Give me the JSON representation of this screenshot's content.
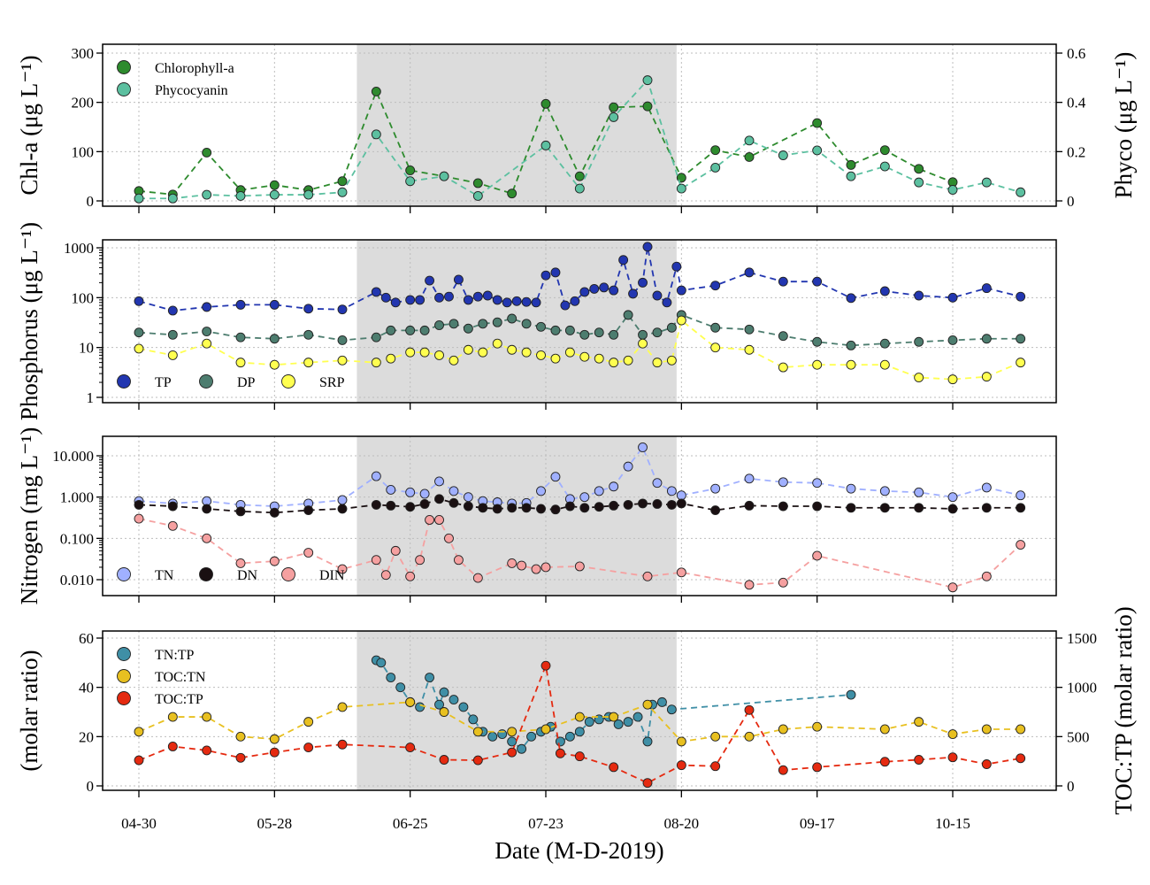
{
  "chart_data": [
    {
      "type": "line",
      "panel": "chlorophyll-phycocyanin",
      "ylabel": "Chl-a (μg L⁻¹)",
      "y2label": "Phyco (μg L⁻¹)",
      "ylim": [
        0,
        300
      ],
      "y2lim": [
        0,
        0.6
      ],
      "yticks": [
        "0",
        "100",
        "200",
        "300"
      ],
      "y2ticks": [
        "0",
        "0.2",
        "0.4",
        "0.6"
      ],
      "grid": true,
      "legend_position": "top-left",
      "shaded_period": [
        "06-14",
        "08-19"
      ],
      "series": [
        {
          "name": "Chlorophyll-a",
          "color": "#2e8b2e",
          "axis": "left",
          "x": [
            "04-30",
            "05-07",
            "05-14",
            "05-21",
            "05-28",
            "06-04",
            "06-11",
            "06-18",
            "06-25",
            "07-02",
            "07-09",
            "07-16",
            "07-23",
            "07-30",
            "08-06",
            "08-13",
            "08-20",
            "08-27",
            "09-03",
            "09-17",
            "09-24",
            "10-01",
            "10-08",
            "10-15"
          ],
          "y": [
            20,
            13,
            98,
            22,
            32,
            22,
            40,
            222,
            62,
            50,
            36,
            15,
            197,
            50,
            190,
            192,
            47,
            103,
            89,
            158,
            73,
            103,
            65,
            38
          ]
        },
        {
          "name": "Phycocyanin",
          "color": "#5cc0a0",
          "axis": "right",
          "x": [
            "04-30",
            "05-07",
            "05-14",
            "05-21",
            "05-28",
            "06-04",
            "06-11",
            "06-18",
            "06-25",
            "07-02",
            "07-09",
            "07-23",
            "07-30",
            "08-06",
            "08-13",
            "08-20",
            "08-27",
            "09-03",
            "09-10",
            "09-17",
            "09-24",
            "10-01",
            "10-08",
            "10-15",
            "10-22",
            "10-29"
          ],
          "y": [
            0.01,
            0.01,
            0.025,
            0.02,
            0.025,
            0.025,
            0.035,
            0.27,
            0.08,
            0.1,
            0.02,
            0.225,
            0.05,
            0.34,
            0.49,
            0.05,
            0.135,
            0.245,
            0.185,
            0.205,
            0.1,
            0.14,
            0.075,
            0.045,
            0.075,
            0.035
          ]
        }
      ]
    },
    {
      "type": "line",
      "panel": "phosphorus",
      "ylabel": "Phosphorus (μg L⁻¹)",
      "yscale": "log",
      "ylim": [
        1,
        1000
      ],
      "yticks": [
        "1",
        "10",
        "100",
        "1000"
      ],
      "grid": true,
      "legend_position": "bottom-left",
      "series": [
        {
          "name": "TP",
          "color": "#2236b0",
          "x": [
            "04-30",
            "05-07",
            "05-14",
            "05-21",
            "05-28",
            "06-04",
            "06-11",
            "06-18",
            "06-20",
            "06-22",
            "06-25",
            "06-27",
            "06-29",
            "07-01",
            "07-03",
            "07-05",
            "07-07",
            "07-09",
            "07-11",
            "07-13",
            "07-15",
            "07-17",
            "07-19",
            "07-21",
            "07-23",
            "07-25",
            "07-27",
            "07-29",
            "07-31",
            "08-02",
            "08-04",
            "08-06",
            "08-08",
            "08-10",
            "08-12",
            "08-13",
            "08-15",
            "08-17",
            "08-19",
            "08-20",
            "08-27",
            "09-03",
            "09-10",
            "09-17",
            "09-24",
            "10-01",
            "10-08",
            "10-15",
            "10-22",
            "10-29"
          ],
          "y": [
            85,
            55,
            65,
            72,
            72,
            60,
            58,
            130,
            100,
            80,
            90,
            90,
            220,
            100,
            105,
            230,
            90,
            105,
            110,
            90,
            80,
            85,
            82,
            80,
            280,
            320,
            70,
            85,
            130,
            150,
            160,
            140,
            570,
            120,
            200,
            1050,
            110,
            80,
            420,
            140,
            175,
            320,
            210,
            210,
            98,
            135,
            110,
            100,
            155,
            105
          ]
        },
        {
          "name": "DP",
          "color": "#4d7d6f",
          "x": [
            "04-30",
            "05-07",
            "05-14",
            "05-21",
            "05-28",
            "06-04",
            "06-11",
            "06-18",
            "06-21",
            "06-25",
            "06-28",
            "07-01",
            "07-04",
            "07-07",
            "07-10",
            "07-13",
            "07-16",
            "07-19",
            "07-22",
            "07-25",
            "07-28",
            "07-31",
            "08-03",
            "08-06",
            "08-09",
            "08-12",
            "08-15",
            "08-18",
            "08-20",
            "08-27",
            "09-03",
            "09-10",
            "09-17",
            "09-24",
            "10-01",
            "10-08",
            "10-15",
            "10-22",
            "10-29"
          ],
          "y": [
            20,
            18,
            21,
            16,
            15,
            18,
            14,
            16,
            22,
            22,
            22,
            28,
            30,
            24,
            30,
            32,
            38,
            30,
            26,
            22,
            22,
            18,
            20,
            18,
            45,
            18,
            20,
            25,
            45,
            25,
            23,
            17,
            13,
            11,
            12,
            13,
            14,
            15,
            15
          ]
        },
        {
          "name": "SRP",
          "color": "#ffff50",
          "x": [
            "04-30",
            "05-07",
            "05-14",
            "05-21",
            "05-28",
            "06-04",
            "06-11",
            "06-18",
            "06-21",
            "06-25",
            "06-28",
            "07-01",
            "07-04",
            "07-07",
            "07-10",
            "07-13",
            "07-16",
            "07-19",
            "07-22",
            "07-25",
            "07-28",
            "07-31",
            "08-03",
            "08-06",
            "08-09",
            "08-12",
            "08-15",
            "08-18",
            "08-20",
            "08-27",
            "09-03",
            "09-10",
            "09-17",
            "09-24",
            "10-01",
            "10-08",
            "10-15",
            "10-22",
            "10-29"
          ],
          "y": [
            9.5,
            7,
            12,
            5,
            4.5,
            5,
            5.5,
            5,
            6,
            8,
            8,
            7,
            5.5,
            9,
            8,
            12,
            9,
            8,
            7,
            6,
            8,
            6.5,
            6,
            5,
            5.5,
            12,
            5,
            5.5,
            35,
            10,
            9,
            4,
            4.5,
            4.5,
            4.5,
            2.5,
            2.3,
            2.6,
            5
          ]
        }
      ]
    },
    {
      "type": "line",
      "panel": "nitrogen",
      "ylabel": "Nitrogen (mg L⁻¹)",
      "yscale": "log",
      "ylim": [
        0.005,
        20
      ],
      "yticks": [
        "0.010",
        "0.100",
        "1.000",
        "10.000"
      ],
      "grid": true,
      "legend_position": "bottom-left",
      "series": [
        {
          "name": "TN",
          "color": "#a0b0ff",
          "x": [
            "04-30",
            "05-07",
            "05-14",
            "05-21",
            "05-28",
            "06-04",
            "06-11",
            "06-18",
            "06-21",
            "06-25",
            "06-28",
            "07-01",
            "07-04",
            "07-07",
            "07-10",
            "07-13",
            "07-16",
            "07-19",
            "07-22",
            "07-25",
            "07-28",
            "07-31",
            "08-03",
            "08-06",
            "08-09",
            "08-12",
            "08-15",
            "08-18",
            "08-20",
            "08-27",
            "09-03",
            "09-10",
            "09-17",
            "09-24",
            "10-01",
            "10-08",
            "10-15",
            "10-22",
            "10-29"
          ],
          "y": [
            0.8,
            0.7,
            0.8,
            0.65,
            0.6,
            0.7,
            0.85,
            3.2,
            1.5,
            1.3,
            1.2,
            2.4,
            1.4,
            1.0,
            0.8,
            0.75,
            0.7,
            0.72,
            1.4,
            3.1,
            0.9,
            1.0,
            1.4,
            1.8,
            5.5,
            16,
            2.2,
            1.4,
            1.1,
            1.6,
            2.8,
            2.3,
            2.2,
            1.6,
            1.4,
            1.3,
            1.0,
            1.7,
            1.1
          ]
        },
        {
          "name": "DN",
          "color": "#1a1012",
          "x": [
            "04-30",
            "05-07",
            "05-14",
            "05-21",
            "05-28",
            "06-04",
            "06-11",
            "06-18",
            "06-21",
            "06-25",
            "06-28",
            "07-01",
            "07-04",
            "07-07",
            "07-10",
            "07-13",
            "07-16",
            "07-19",
            "07-22",
            "07-25",
            "07-28",
            "07-31",
            "08-03",
            "08-06",
            "08-09",
            "08-12",
            "08-15",
            "08-18",
            "08-20",
            "08-27",
            "09-03",
            "09-10",
            "09-17",
            "09-24",
            "10-01",
            "10-08",
            "10-15",
            "10-22",
            "10-29"
          ],
          "y": [
            0.65,
            0.6,
            0.52,
            0.45,
            0.42,
            0.48,
            0.52,
            0.65,
            0.62,
            0.58,
            0.68,
            0.9,
            0.72,
            0.6,
            0.55,
            0.52,
            0.55,
            0.55,
            0.52,
            0.5,
            0.6,
            0.55,
            0.58,
            0.62,
            0.65,
            0.7,
            0.68,
            0.65,
            0.7,
            0.48,
            0.62,
            0.6,
            0.6,
            0.55,
            0.55,
            0.55,
            0.52,
            0.55,
            0.55
          ]
        },
        {
          "name": "DIN",
          "color": "#f5a0a0",
          "x": [
            "04-30",
            "05-07",
            "05-14",
            "05-21",
            "05-28",
            "06-04",
            "06-11",
            "06-18",
            "06-20",
            "06-22",
            "06-25",
            "06-27",
            "06-29",
            "07-01",
            "07-03",
            "07-05",
            "07-09",
            "07-16",
            "07-18",
            "07-21",
            "07-23",
            "07-30",
            "08-13",
            "08-20",
            "09-03",
            "09-10",
            "09-17",
            "10-15",
            "10-22",
            "10-29"
          ],
          "y": [
            0.3,
            0.2,
            0.1,
            0.025,
            0.028,
            0.045,
            0.018,
            0.03,
            0.013,
            0.05,
            0.012,
            0.03,
            0.28,
            0.28,
            0.1,
            0.03,
            0.011,
            0.025,
            0.022,
            0.018,
            0.02,
            0.021,
            0.012,
            0.015,
            0.0075,
            0.0085,
            0.038,
            0.0065,
            0.012,
            0.07
          ]
        }
      ]
    },
    {
      "type": "line",
      "panel": "stoichiometry",
      "ylabel": "(molar ratio)",
      "y2label": "TOC:TP (molar ratio)",
      "ylim": [
        0,
        60
      ],
      "y2lim": [
        0,
        1500
      ],
      "yticks": [
        "0",
        "20",
        "40",
        "60"
      ],
      "y2ticks": [
        "0",
        "500",
        "1000",
        "1500"
      ],
      "xlabel": "Date (M-D-2019)",
      "xticks": [
        "04-30",
        "05-28",
        "06-25",
        "07-23",
        "08-20",
        "09-17",
        "10-15"
      ],
      "grid": true,
      "legend_position": "top-left",
      "series": [
        {
          "name": "TN:TP",
          "color": "#3f8fa6",
          "axis": "left",
          "x": [
            "06-18",
            "06-19",
            "06-21",
            "06-23",
            "06-25",
            "06-27",
            "06-29",
            "07-01",
            "07-02",
            "07-04",
            "07-06",
            "07-08",
            "07-10",
            "07-12",
            "07-14",
            "07-16",
            "07-18",
            "07-20",
            "07-22",
            "07-24",
            "07-26",
            "07-28",
            "07-30",
            "08-01",
            "08-03",
            "08-05",
            "08-07",
            "08-09",
            "08-11",
            "08-13",
            "08-14",
            "08-16",
            "08-18",
            "09-24"
          ],
          "y": [
            51,
            50,
            44,
            40,
            34,
            32,
            44,
            33,
            38,
            35,
            32,
            27,
            22,
            20,
            21,
            18,
            15,
            20,
            22,
            24,
            18,
            20,
            22,
            26,
            27,
            28,
            25,
            26,
            28,
            18,
            33,
            34,
            31,
            37
          ]
        },
        {
          "name": "TOC:TN",
          "color": "#e8c020",
          "axis": "left",
          "x": [
            "04-30",
            "05-07",
            "05-14",
            "05-21",
            "05-28",
            "06-04",
            "06-11",
            "06-25",
            "07-02",
            "07-09",
            "07-16",
            "07-23",
            "07-30",
            "08-06",
            "08-13",
            "08-20",
            "08-27",
            "09-03",
            "09-10",
            "09-17",
            "10-01",
            "10-08",
            "10-15",
            "10-22",
            "10-29"
          ],
          "y": [
            22,
            28,
            28,
            20,
            19,
            26,
            32,
            34,
            30,
            22,
            22,
            23,
            28,
            28,
            33,
            18,
            20,
            20,
            23,
            24,
            23,
            26,
            21,
            23,
            23
          ]
        },
        {
          "name": "TOC:TP",
          "color": "#e52a10",
          "axis": "right",
          "x": [
            "04-30",
            "05-07",
            "05-14",
            "05-21",
            "05-28",
            "06-04",
            "06-11",
            "06-25",
            "07-02",
            "07-09",
            "07-16",
            "07-23",
            "07-26",
            "07-30",
            "08-06",
            "08-13",
            "08-20",
            "08-27",
            "09-03",
            "09-10",
            "09-17",
            "10-01",
            "10-08",
            "10-15",
            "10-22",
            "10-29"
          ],
          "y": [
            260,
            400,
            360,
            285,
            340,
            390,
            420,
            390,
            265,
            260,
            340,
            1220,
            330,
            300,
            190,
            30,
            210,
            200,
            770,
            160,
            190,
            245,
            265,
            290,
            220,
            280
          ]
        }
      ]
    }
  ]
}
